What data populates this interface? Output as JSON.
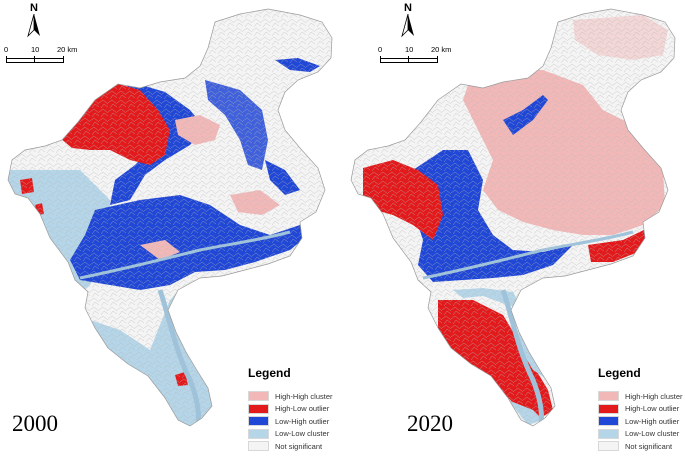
{
  "map_panels": [
    {
      "year": "2000",
      "north_label": "N",
      "scale": {
        "ticks": [
          "0",
          "10",
          "20 km"
        ]
      },
      "legend": {
        "title": "Legend",
        "items": [
          {
            "label": "High-High cluster",
            "color": "#f2b8b8"
          },
          {
            "label": "High-Low outlier",
            "color": "#e31a1c"
          },
          {
            "label": "Low-High outlier",
            "color": "#2047d6"
          },
          {
            "label": "Low-Low cluster",
            "color": "#b5d5e8"
          },
          {
            "label": "Not significant",
            "color": "#f4f4f4"
          }
        ]
      }
    },
    {
      "year": "2020",
      "north_label": "N",
      "scale": {
        "ticks": [
          "0",
          "10",
          "20 km"
        ]
      },
      "legend": {
        "title": "Legend",
        "items": [
          {
            "label": "High-High cluster",
            "color": "#f2b8b8"
          },
          {
            "label": "High-Low outlier",
            "color": "#e31a1c"
          },
          {
            "label": "Low-High outlier",
            "color": "#2047d6"
          },
          {
            "label": "Low-Low cluster",
            "color": "#b5d5e8"
          },
          {
            "label": "Not significant",
            "color": "#f4f4f4"
          }
        ]
      }
    }
  ]
}
